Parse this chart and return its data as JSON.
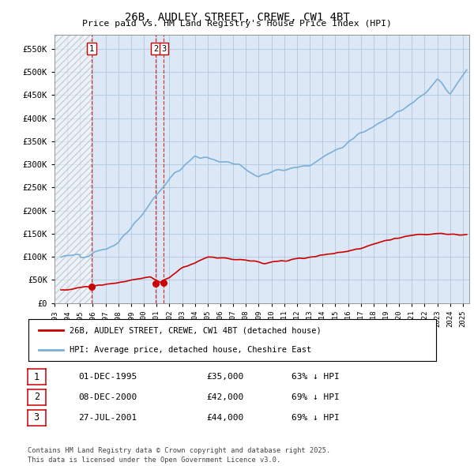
{
  "title": "26B, AUDLEY STREET, CREWE, CW1 4BT",
  "subtitle": "Price paid vs. HM Land Registry's House Price Index (HPI)",
  "hpi_line_color": "#7ab0d8",
  "sale_color": "#cc0000",
  "vline_color": "#cc0000",
  "ylim": [
    0,
    580000
  ],
  "xlim": [
    1993.0,
    2025.5
  ],
  "yticks": [
    0,
    50000,
    100000,
    150000,
    200000,
    250000,
    300000,
    350000,
    400000,
    450000,
    500000,
    550000
  ],
  "sale_dates": [
    1995.92,
    2000.93,
    2001.57
  ],
  "sale_prices": [
    35000,
    42000,
    44000
  ],
  "legend_entries": [
    "26B, AUDLEY STREET, CREWE, CW1 4BT (detached house)",
    "HPI: Average price, detached house, Cheshire East"
  ],
  "table_rows": [
    [
      "1",
      "01-DEC-1995",
      "£35,000",
      "63% ↓ HPI"
    ],
    [
      "2",
      "08-DEC-2000",
      "£42,000",
      "69% ↓ HPI"
    ],
    [
      "3",
      "27-JUL-2001",
      "£44,000",
      "69% ↓ HPI"
    ]
  ],
  "footnote": "Contains HM Land Registry data © Crown copyright and database right 2025.\nThis data is licensed under the Open Government Licence v3.0.",
  "background_color": "#f0f4f8",
  "plot_bg_color": "#dce8f5",
  "grid_color": "#b0c8e0"
}
